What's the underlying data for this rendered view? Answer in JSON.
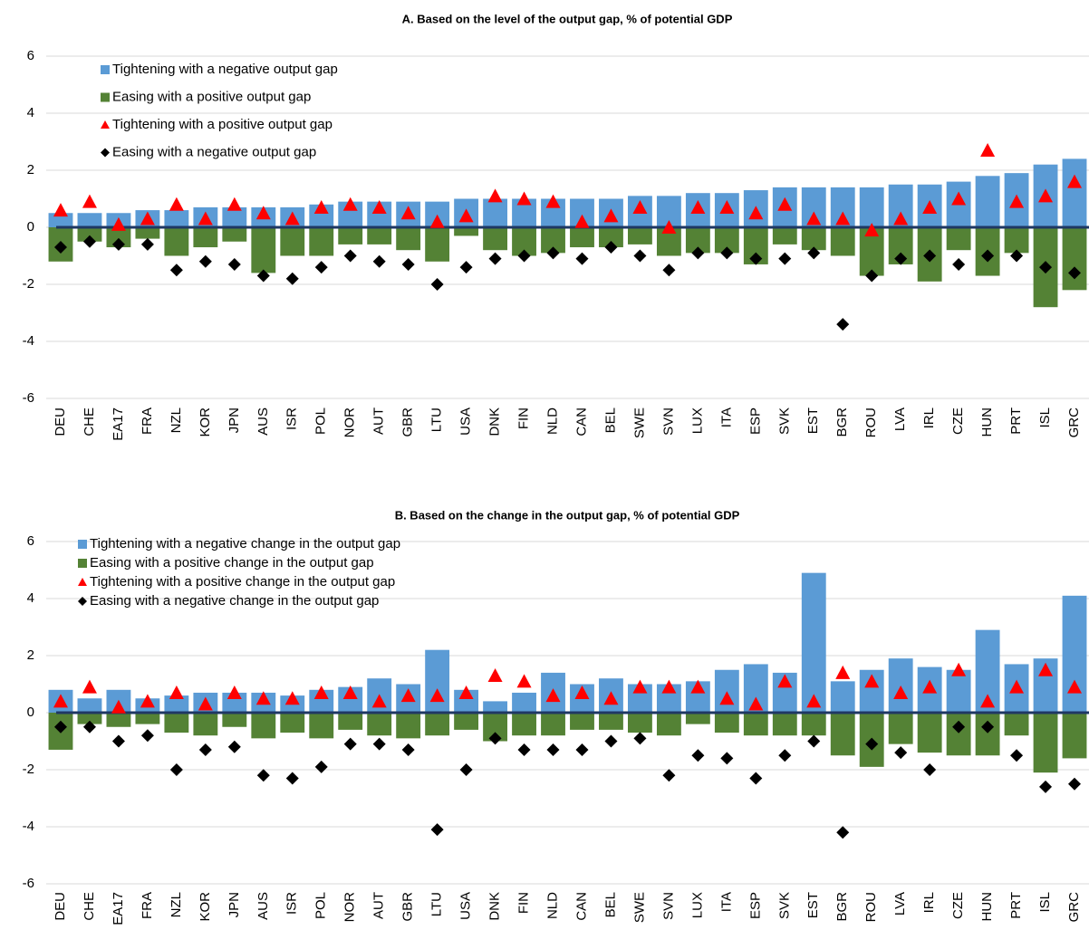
{
  "chart_data": [
    {
      "type": "bar",
      "title": "A. Based on the level of the output gap, % of potential GDP",
      "categories": [
        "DEU",
        "CHE",
        "EA17",
        "FRA",
        "NZL",
        "KOR",
        "JPN",
        "AUS",
        "ISR",
        "POL",
        "NOR",
        "AUT",
        "GBR",
        "LTU",
        "USA",
        "DNK",
        "FIN",
        "NLD",
        "CAN",
        "BEL",
        "SWE",
        "SVN",
        "LUX",
        "ITA",
        "ESP",
        "SVK",
        "EST",
        "BGR",
        "ROU",
        "LVA",
        "IRL",
        "CZE",
        "HUN",
        "PRT",
        "ISL",
        "GRC"
      ],
      "series": [
        {
          "name": "Tightening with a negative output gap",
          "color": "#5b9bd5",
          "marker": "bar",
          "values": [
            0.5,
            0.5,
            0.5,
            0.6,
            0.6,
            0.7,
            0.7,
            0.7,
            0.7,
            0.8,
            0.9,
            0.9,
            0.9,
            0.9,
            1.0,
            1.0,
            1.0,
            1.0,
            1.0,
            1.0,
            1.1,
            1.1,
            1.2,
            1.2,
            1.3,
            1.4,
            1.4,
            1.4,
            1.4,
            1.5,
            1.5,
            1.6,
            1.8,
            1.9,
            2.2,
            2.4
          ]
        },
        {
          "name": "Easing with a positive output gap",
          "color": "#548235",
          "marker": "bar",
          "values": [
            -1.2,
            -0.5,
            -0.7,
            -0.4,
            -1.0,
            -0.7,
            -0.5,
            -1.6,
            -1.0,
            -1.0,
            -0.6,
            -0.6,
            -0.8,
            -1.2,
            -0.3,
            -0.8,
            -1.0,
            -0.9,
            -0.7,
            -0.7,
            -0.6,
            -1.0,
            -0.9,
            -0.9,
            -1.3,
            -0.6,
            -0.8,
            -1.0,
            -1.7,
            -1.3,
            -1.9,
            -0.8,
            -1.7,
            -0.9,
            -2.8,
            -2.2
          ]
        },
        {
          "name": "Tightening with a positive output gap",
          "color": "#ff0000",
          "marker": "triangle",
          "values": [
            0.6,
            0.9,
            0.1,
            0.3,
            0.8,
            0.3,
            0.8,
            0.5,
            0.3,
            0.7,
            0.8,
            0.7,
            0.5,
            0.2,
            0.4,
            1.1,
            1.0,
            0.9,
            0.2,
            0.4,
            0.7,
            0.0,
            0.7,
            0.7,
            0.5,
            0.8,
            0.3,
            0.3,
            -0.1,
            0.3,
            0.7,
            1.0,
            2.7,
            0.9,
            1.1,
            1.6
          ]
        },
        {
          "name": "Easing with a negative output gap",
          "color": "#000000",
          "marker": "diamond",
          "values": [
            -0.7,
            -0.5,
            -0.6,
            -0.6,
            -1.5,
            -1.2,
            -1.3,
            -1.7,
            -1.8,
            -1.4,
            -1.0,
            -1.2,
            -1.3,
            -2.0,
            -1.4,
            -1.1,
            -1.0,
            -0.9,
            -1.1,
            -0.7,
            -1.0,
            -1.5,
            -0.9,
            -0.9,
            -1.1,
            -1.1,
            -0.9,
            -3.4,
            -1.7,
            -1.1,
            -1.0,
            -1.3,
            -1.0,
            -1.0,
            -1.4,
            -1.6
          ]
        }
      ],
      "ylim": [
        -6,
        6
      ],
      "yticks": [
        -6,
        -4,
        -2,
        0,
        2,
        4,
        6
      ],
      "grid": true,
      "zero_line_color": "#1f3864"
    },
    {
      "type": "bar",
      "title": "B. Based on the change in the output gap, % of potential GDP",
      "categories": [
        "DEU",
        "CHE",
        "EA17",
        "FRA",
        "NZL",
        "KOR",
        "JPN",
        "AUS",
        "ISR",
        "POL",
        "NOR",
        "AUT",
        "GBR",
        "LTU",
        "USA",
        "DNK",
        "FIN",
        "NLD",
        "CAN",
        "BEL",
        "SWE",
        "SVN",
        "LUX",
        "ITA",
        "ESP",
        "SVK",
        "EST",
        "BGR",
        "ROU",
        "LVA",
        "IRL",
        "CZE",
        "HUN",
        "PRT",
        "ISL",
        "GRC"
      ],
      "series": [
        {
          "name": "Tightening with a negative change in the output gap",
          "color": "#5b9bd5",
          "marker": "bar",
          "values": [
            0.8,
            0.5,
            0.8,
            0.5,
            0.6,
            0.7,
            0.7,
            0.7,
            0.6,
            0.8,
            0.9,
            1.2,
            1.0,
            2.2,
            0.8,
            0.4,
            0.7,
            1.4,
            1.0,
            1.2,
            1.0,
            1.0,
            1.1,
            1.5,
            1.7,
            1.4,
            4.9,
            1.1,
            1.5,
            1.9,
            1.6,
            1.5,
            2.9,
            1.7,
            1.9,
            4.1
          ]
        },
        {
          "name": "Easing with a positive change in the output gap",
          "color": "#548235",
          "marker": "bar",
          "values": [
            -1.3,
            -0.4,
            -0.5,
            -0.4,
            -0.7,
            -0.8,
            -0.5,
            -0.9,
            -0.7,
            -0.9,
            -0.6,
            -0.8,
            -0.9,
            -0.8,
            -0.6,
            -1.0,
            -0.8,
            -0.8,
            -0.6,
            -0.6,
            -0.7,
            -0.8,
            -0.4,
            -0.7,
            -0.8,
            -0.8,
            -0.8,
            -1.5,
            -1.9,
            -1.1,
            -1.4,
            -1.5,
            -1.5,
            -0.8,
            -2.1,
            -1.6
          ]
        },
        {
          "name": "Tightening with a positive change in the output gap",
          "color": "#ff0000",
          "marker": "triangle",
          "values": [
            0.4,
            0.9,
            0.2,
            0.4,
            0.7,
            0.3,
            0.7,
            0.5,
            0.5,
            0.7,
            0.7,
            0.4,
            0.6,
            0.6,
            0.7,
            1.3,
            1.1,
            0.6,
            0.7,
            0.5,
            0.9,
            0.9,
            0.9,
            0.5,
            0.3,
            1.1,
            0.4,
            1.4,
            1.1,
            0.7,
            0.9,
            1.5,
            0.4,
            0.9,
            1.5,
            0.9
          ]
        },
        {
          "name": "Easing with a negative change in the output gap",
          "color": "#000000",
          "marker": "diamond",
          "values": [
            -0.5,
            -0.5,
            -1.0,
            -0.8,
            -2.0,
            -1.3,
            -1.2,
            -2.2,
            -2.3,
            -1.9,
            -1.1,
            -1.1,
            -1.3,
            -4.1,
            -2.0,
            -0.9,
            -1.3,
            -1.3,
            -1.3,
            -1.0,
            -0.9,
            -2.2,
            -1.5,
            -1.6,
            -2.3,
            -1.5,
            -1.0,
            -4.2,
            -1.1,
            -1.4,
            -2.0,
            -0.5,
            -0.5,
            -1.5,
            -2.6,
            -2.5
          ]
        }
      ],
      "ylim": [
        -6,
        6
      ],
      "yticks": [
        -6,
        -4,
        -2,
        0,
        2,
        4,
        6
      ],
      "grid": true,
      "zero_line_color": "#1f3864"
    }
  ]
}
